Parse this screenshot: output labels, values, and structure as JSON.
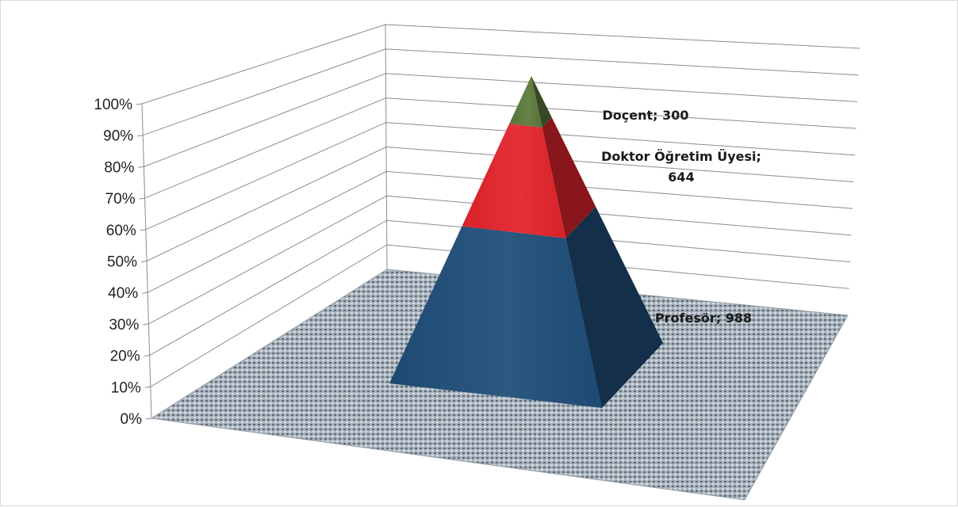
{
  "chart_data": {
    "type": "pyramid",
    "stacked_percent": true,
    "ylim": [
      0,
      100
    ],
    "y_ticks": [
      "0%",
      "10%",
      "20%",
      "30%",
      "40%",
      "50%",
      "60%",
      "70%",
      "80%",
      "90%",
      "100%"
    ],
    "series": [
      {
        "name": "Profesör",
        "value": 988,
        "label": "Profesör; 988",
        "color": "#1f4e79"
      },
      {
        "name": "Doktor Öğretim Üyesi",
        "value": 644,
        "label_lines": [
          "Doktor Öğretim Üyesi;",
          "644"
        ],
        "color": "#e3242b"
      },
      {
        "name": "Doçent",
        "value": 300,
        "label": "Doçent; 300",
        "color": "#5c7a3c"
      }
    ],
    "grid": true,
    "floor_pattern": "dotted-gray"
  }
}
